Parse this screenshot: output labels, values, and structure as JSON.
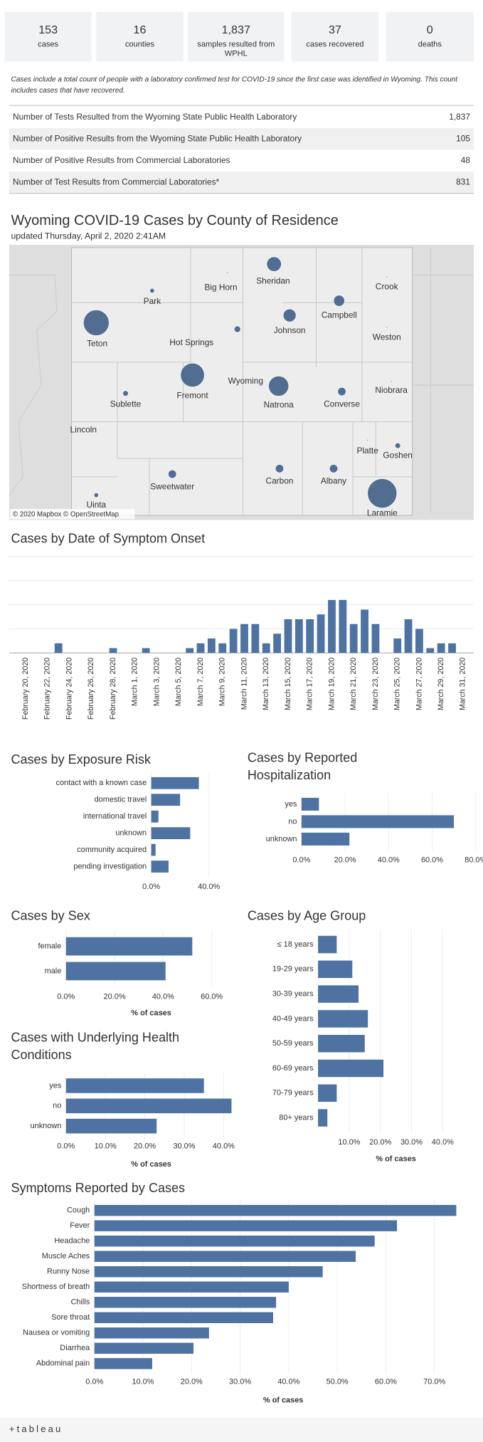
{
  "stats": [
    {
      "value": "153",
      "label": "cases"
    },
    {
      "value": "16",
      "label": "counties"
    },
    {
      "value": "1,837",
      "label": "samples resulted from WPHL"
    },
    {
      "value": "37",
      "label": "cases recovered"
    },
    {
      "value": "0",
      "label": "deaths"
    }
  ],
  "note": "Cases include a total count of people with a laboratory confirmed test for COVID-19 since the first case was identified in Wyoming. This count includes cases that have recovered.",
  "table": {
    "rows": [
      [
        "Number of Tests Resulted from the Wyoming State Public Health Laboratory",
        "1,837"
      ],
      [
        "Number of Positive Results from the Wyoming State Public Health Laboratory",
        "105"
      ],
      [
        "Number of Positive Results from Commercial Laboratories",
        "48"
      ],
      [
        "Number of Test Results from Commercial Laboratories*",
        "831"
      ]
    ]
  },
  "map": {
    "title": "Wyoming COVID-19 Cases by County of Residence",
    "subtitle": "updated Thursday, April 2, 2020 2:41AM",
    "labels": [
      "Sheridan",
      "Big Horn",
      "Park",
      "Crook",
      "Teton",
      "Johnson",
      "Campbell",
      "Hot Springs",
      "Weston",
      "Wyoming",
      "Fremont",
      "Natrona",
      "Converse",
      "Niobrara",
      "Sublette",
      "Lincoln",
      "Platte",
      "Goshen",
      "Sweetwater",
      "Carbon",
      "Albany",
      "Laramie",
      "Uinta"
    ],
    "credit": "© 2020 Mapbox © OpenStreetMap"
  },
  "chart_data": [
    {
      "type": "bar",
      "title": "Cases by Date of Symptom Onset",
      "color": "#4e73a3",
      "categories": [
        "February 20, 2020",
        null,
        "February 22, 2020",
        null,
        "February 24, 2020",
        null,
        "February 26, 2020",
        null,
        "February 28, 2020",
        null,
        "March 1, 2020",
        null,
        "March 3, 2020",
        null,
        "March 5, 2020",
        null,
        "March 7, 2020",
        null,
        "March 9, 2020",
        null,
        "March 11, 2020",
        null,
        "March 13, 2020",
        null,
        "March 15, 2020",
        null,
        "March 17, 2020",
        null,
        "March 19, 2020",
        null,
        "March 21, 2020",
        null,
        "March 23, 2020",
        null,
        "March 25, 2020",
        null,
        "March 27, 2020",
        null,
        "March 29, 2020",
        null,
        "March 31, 2020"
      ],
      "values": [
        0,
        0,
        0,
        2,
        0,
        0,
        0,
        0,
        1,
        0,
        0,
        1,
        0,
        0,
        0,
        1,
        2,
        3,
        2,
        5,
        6,
        6,
        2,
        4,
        7,
        7,
        7,
        8,
        11,
        11,
        6,
        9,
        6,
        0,
        3,
        7,
        5,
        1,
        2,
        2,
        0
      ],
      "ylim": [
        0,
        20
      ],
      "grid_lines": [
        0,
        5,
        10,
        15,
        20
      ]
    },
    {
      "type": "hbar",
      "title": "Cases by Exposure Risk",
      "color": "#4e73a3",
      "categories": [
        "contact with a known case",
        "domestic travel",
        "international travel",
        "unknown",
        "community acquired",
        "pending investigation"
      ],
      "values": [
        33,
        20,
        5,
        27,
        3,
        12
      ],
      "xlim": [
        0,
        60
      ],
      "xticks": [
        {
          "value": 0,
          "label": "0.0%"
        },
        {
          "value": 40,
          "label": "40.0%"
        }
      ],
      "grid": true
    },
    {
      "type": "hbar",
      "title": "Cases by Reported Hospitalization",
      "color": "#4e73a3",
      "categories": [
        "yes",
        "no",
        "unknown"
      ],
      "values": [
        8,
        70,
        22
      ],
      "xlim": [
        0,
        80
      ],
      "xticks": [
        {
          "value": 0,
          "label": "0.0%"
        },
        {
          "value": 20,
          "label": "20.0%"
        },
        {
          "value": 40,
          "label": "40.0%"
        },
        {
          "value": 60,
          "label": "60.0%"
        },
        {
          "value": 80,
          "label": "80.0%"
        }
      ],
      "grid": true
    },
    {
      "type": "hbar",
      "title": "Cases by Sex",
      "color": "#4e73a3",
      "x_label": "% of cases",
      "categories": [
        "female",
        "male"
      ],
      "values": [
        52,
        41
      ],
      "xlim": [
        0,
        70
      ],
      "xticks": [
        {
          "value": 0,
          "label": "0.0%"
        },
        {
          "value": 20,
          "label": "20.0%"
        },
        {
          "value": 40,
          "label": "40.0%"
        },
        {
          "value": 60,
          "label": "60.0%"
        }
      ],
      "grid": true
    },
    {
      "type": "hbar",
      "title": "Cases by Age Group",
      "color": "#4e73a3",
      "x_label": "% of cases",
      "categories": [
        "≤ 18 years",
        "19-29 years",
        "30-39 years",
        "40-49 years",
        "50-59 years",
        "60-69 years",
        "70-79 years",
        "80+ years"
      ],
      "values": [
        6,
        11,
        13,
        16,
        15,
        21,
        6,
        3
      ],
      "xlim": [
        0,
        50
      ],
      "xticks": [
        {
          "value": 10,
          "label": "10.0%"
        },
        {
          "value": 20,
          "label": "20.0%"
        },
        {
          "value": 30,
          "label": "30.0%"
        },
        {
          "value": 40,
          "label": "40.0%"
        }
      ],
      "grid": true
    },
    {
      "type": "hbar",
      "title": "Cases with Underlying Health Conditions",
      "color": "#4e73a3",
      "x_label": "% of cases",
      "categories": [
        "yes",
        "no",
        "unknown"
      ],
      "values": [
        35,
        42,
        23
      ],
      "xlim": [
        0,
        44
      ],
      "xticks": [
        {
          "value": 0,
          "label": "0.0%"
        },
        {
          "value": 10,
          "label": "10.0%"
        },
        {
          "value": 20,
          "label": "20.0%"
        },
        {
          "value": 30,
          "label": "30.0%"
        },
        {
          "value": 40,
          "label": "40.0%"
        }
      ],
      "grid": true
    },
    {
      "type": "hbar",
      "title": "Symptoms Reported by Cases",
      "color": "#4e73a3",
      "x_label": "% of cases",
      "categories": [
        "Cough",
        "Fever",
        "Headache",
        "Muscle Aches",
        "Runny Nose",
        "Shortness of breath",
        "Chills",
        "Sore throat",
        "Nausea or vomiting",
        "Diarrhea",
        "Abdominal pain"
      ],
      "values": [
        74.5,
        62.3,
        57.7,
        53.8,
        47,
        40,
        37.4,
        36.8,
        23.6,
        20.4,
        11.9
      ],
      "xlim": [
        0,
        78
      ],
      "xticks": [
        {
          "value": 0,
          "label": "0.0%"
        },
        {
          "value": 10,
          "label": "10.0%"
        },
        {
          "value": 20,
          "label": "20.0%"
        },
        {
          "value": 30,
          "label": "30.0%"
        },
        {
          "value": 40,
          "label": "40.0%"
        },
        {
          "value": 50,
          "label": "50.0%"
        },
        {
          "value": 60,
          "label": "60.0%"
        },
        {
          "value": 70,
          "label": "70.0%"
        }
      ],
      "grid": true
    }
  ],
  "footer_logo": "+tableau"
}
